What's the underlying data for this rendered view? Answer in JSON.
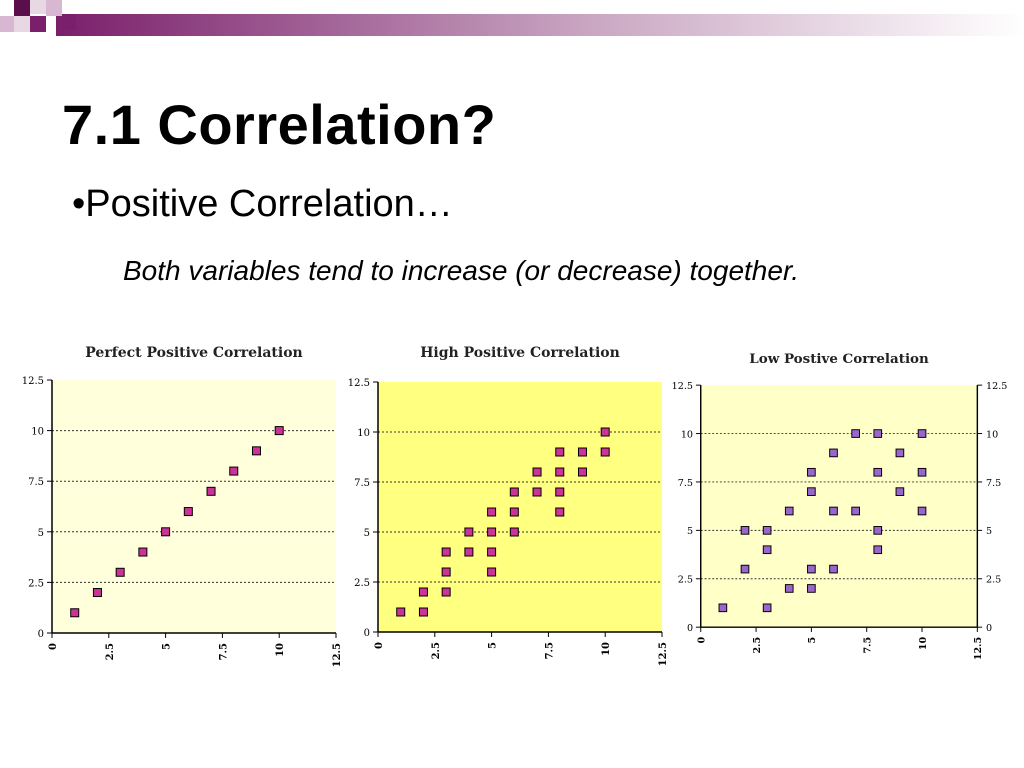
{
  "slide": {
    "title": "7.1 Correlation?",
    "bullet": "•Positive Correlation…",
    "subtitle": "Both variables tend to increase (or decrease) together."
  },
  "theme": {
    "accent": "#7a1f6b",
    "accent_light": "#d7b7d1"
  },
  "chart_data": [
    {
      "type": "scatter",
      "title": "Perfect Positive Correlation",
      "xlim": [
        0,
        12.5
      ],
      "ylim": [
        0,
        12.5
      ],
      "xticks": [
        "0",
        "2.5",
        "5",
        "7.5",
        "10",
        "12.5"
      ],
      "yticks": [
        "0",
        "2.5",
        "5",
        "7.5",
        "10",
        "12.5"
      ],
      "grid": "horizontal dotted",
      "background": "#ffffdc",
      "marker_color": "#cc3399",
      "points": [
        [
          1,
          1
        ],
        [
          2,
          2
        ],
        [
          3,
          3
        ],
        [
          4,
          4
        ],
        [
          5,
          5
        ],
        [
          6,
          6
        ],
        [
          7,
          7
        ],
        [
          8,
          8
        ],
        [
          9,
          9
        ],
        [
          10,
          10
        ]
      ]
    },
    {
      "type": "scatter",
      "title": "High Positive Correlation",
      "xlim": [
        0,
        12.5
      ],
      "ylim": [
        0,
        12.5
      ],
      "xticks": [
        "0",
        "2.5",
        "5",
        "7.5",
        "10",
        "12.5"
      ],
      "yticks": [
        "0",
        "2.5",
        "5",
        "7.5",
        "10",
        "12.5"
      ],
      "grid": "horizontal dotted",
      "background": "#ffff80",
      "marker_color": "#cc3399",
      "points": [
        [
          1,
          1
        ],
        [
          2,
          1
        ],
        [
          2,
          2
        ],
        [
          3,
          2
        ],
        [
          3,
          3
        ],
        [
          3,
          4
        ],
        [
          4,
          4
        ],
        [
          4,
          5
        ],
        [
          5,
          3
        ],
        [
          5,
          4
        ],
        [
          5,
          5
        ],
        [
          5,
          6
        ],
        [
          6,
          5
        ],
        [
          6,
          6
        ],
        [
          6,
          7
        ],
        [
          7,
          7
        ],
        [
          7,
          8
        ],
        [
          8,
          6
        ],
        [
          8,
          7
        ],
        [
          8,
          8
        ],
        [
          8,
          9
        ],
        [
          9,
          8
        ],
        [
          9,
          9
        ],
        [
          10,
          9
        ],
        [
          10,
          10
        ]
      ]
    },
    {
      "type": "scatter",
      "title": "Low Postive Correlation",
      "xlim": [
        0,
        12.5
      ],
      "ylim": [
        0,
        12.5
      ],
      "xticks": [
        "0",
        "2.5",
        "5",
        "7.5",
        "10",
        "12.5"
      ],
      "yticks": [
        "0",
        "2.5",
        "5",
        "7.5",
        "10",
        "12.5"
      ],
      "grid": "horizontal dotted",
      "background": "#ffffc8",
      "marker_color": "#9966cc",
      "right_axis": true,
      "points": [
        [
          1,
          1
        ],
        [
          2,
          3
        ],
        [
          2,
          5
        ],
        [
          3,
          1
        ],
        [
          3,
          4
        ],
        [
          3,
          5
        ],
        [
          4,
          2
        ],
        [
          4,
          6
        ],
        [
          5,
          2
        ],
        [
          5,
          3
        ],
        [
          5,
          7
        ],
        [
          5,
          8
        ],
        [
          6,
          3
        ],
        [
          6,
          6
        ],
        [
          6,
          9
        ],
        [
          7,
          6
        ],
        [
          7,
          10
        ],
        [
          8,
          4
        ],
        [
          8,
          5
        ],
        [
          8,
          8
        ],
        [
          8,
          10
        ],
        [
          9,
          7
        ],
        [
          9,
          9
        ],
        [
          10,
          6
        ],
        [
          10,
          8
        ],
        [
          10,
          10
        ]
      ]
    }
  ]
}
